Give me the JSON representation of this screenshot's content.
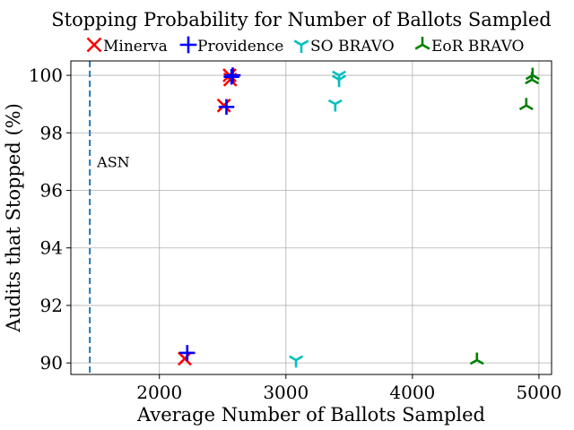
{
  "chart_data": {
    "type": "scatter",
    "title": "Stopping Probability for Number of Ballots Sampled",
    "xlabel": "Average Number of Ballots Sampled",
    "ylabel": "Audits that Stopped (%)",
    "xlim": [
      1300,
      5100
    ],
    "ylim": [
      89.6,
      100.5
    ],
    "xticks": [
      2000,
      3000,
      4000,
      5000
    ],
    "yticks": [
      90,
      92,
      94,
      96,
      98,
      100
    ],
    "grid": true,
    "legend_position": "top, above plot, single row",
    "vline": {
      "x": 1450,
      "label": "ASN",
      "color": "#1f77b4",
      "style": "dashed"
    },
    "series": [
      {
        "name": "Minerva",
        "marker": "x",
        "color": "#ff0000",
        "points": [
          [
            2200,
            90.15
          ],
          [
            2510,
            98.95
          ],
          [
            2560,
            99.85
          ],
          [
            2555,
            100.0
          ]
        ]
      },
      {
        "name": "Providence",
        "marker": "plus",
        "color": "#0000ff",
        "points": [
          [
            2220,
            90.35
          ],
          [
            2530,
            98.9
          ],
          [
            2570,
            99.95
          ],
          [
            2580,
            100.0
          ]
        ]
      },
      {
        "name": "SO BRAVO",
        "marker": "tri_down",
        "color": "#00bfbf",
        "points": [
          [
            3080,
            90.1
          ],
          [
            3390,
            99.0
          ],
          [
            3420,
            99.85
          ],
          [
            3420,
            100.0
          ]
        ]
      },
      {
        "name": "EoR BRAVO",
        "marker": "tri_up",
        "color": "#008000",
        "points": [
          [
            4510,
            90.1
          ],
          [
            4900,
            98.95
          ],
          [
            4945,
            99.85
          ],
          [
            4950,
            100.0
          ]
        ]
      }
    ]
  }
}
